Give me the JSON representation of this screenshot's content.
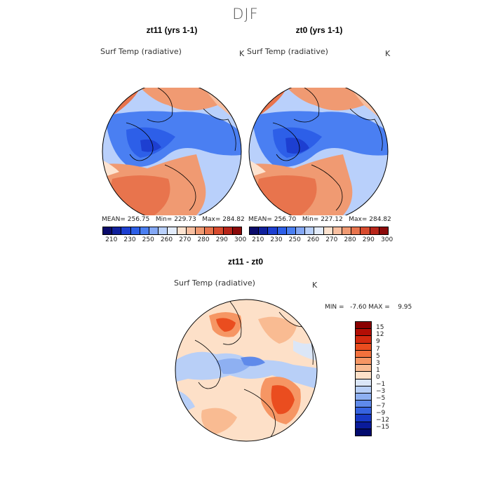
{
  "season_title": "DJF",
  "panels": [
    {
      "title": "zt11 (yrs 1-1)",
      "field": "Surf Temp (radiative)",
      "unit": "K",
      "stats": "MEAN= 256.75   Min= 229.73   Max= 284.82"
    },
    {
      "title": "zt0 (yrs 1-1)",
      "field": "Surf Temp (radiative)",
      "unit": "K",
      "stats": "MEAN= 256.70   Min= 227.12   Max= 284.82"
    }
  ],
  "diff_panel": {
    "title": "zt11 - zt0",
    "field": "Surf Temp (radiative)",
    "unit": "K",
    "stats": "MIN =   -7.60 MAX =    9.95"
  },
  "abs_colorbar": {
    "tick_labels": [
      "210",
      "230",
      "250",
      "260",
      "270",
      "280",
      "290",
      "300"
    ],
    "colors": [
      "#0b0b6b",
      "#10209c",
      "#1d3fd1",
      "#2d5fe8",
      "#4a7ff2",
      "#84a8f5",
      "#b9d0fb",
      "#e3ecfb",
      "#fde3d0",
      "#f8bfa0",
      "#f09a72",
      "#e8744d",
      "#d84b2e",
      "#b8261a",
      "#8b0a0a"
    ]
  },
  "diff_colorbar": {
    "labels": [
      "15",
      "12",
      "9",
      "7",
      "5",
      "3",
      "1",
      "0",
      "−1",
      "−3",
      "−5",
      "−7",
      "−9",
      "−12",
      "−15"
    ],
    "colors": [
      "#8a0000",
      "#b30e05",
      "#d42a10",
      "#ea4d1f",
      "#f3713d",
      "#f69664",
      "#f9bb92",
      "#fde0c8",
      "#dbe6f7",
      "#b8cff7",
      "#8eb0f2",
      "#5f8aea",
      "#3663e0",
      "#1839c6",
      "#0a1b9a",
      "#020a6e"
    ]
  }
}
